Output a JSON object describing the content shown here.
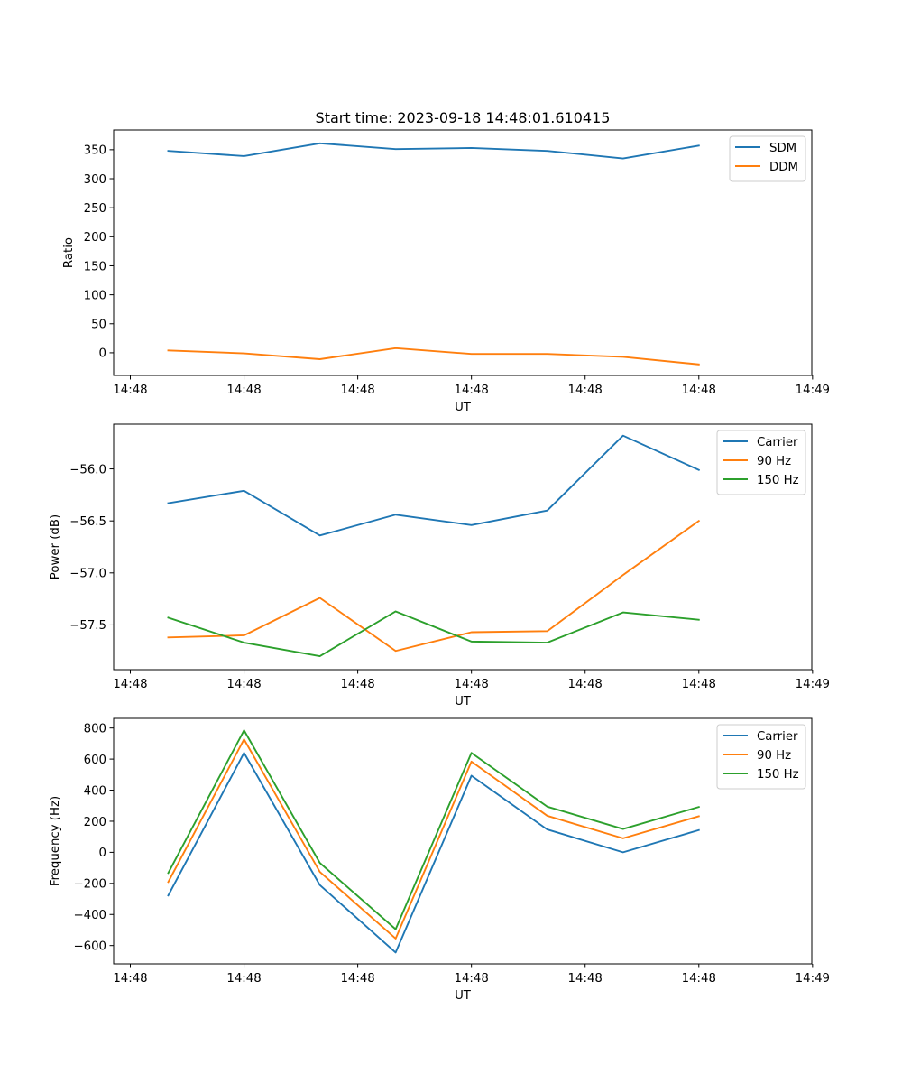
{
  "figure_title": "Start time: 2023-09-18 14:48:01.610415",
  "colors": {
    "blue": "#1f77b4",
    "orange": "#ff7f0e",
    "green": "#2ca02c"
  },
  "chart_data": [
    {
      "type": "line",
      "title": "Start time: 2023-09-18 14:48:01.610415",
      "xlabel": "UT",
      "ylabel": "Ratio",
      "x": [
        0,
        1,
        2,
        3,
        4,
        5,
        6,
        7
      ],
      "xlim": [
        -0.72,
        8.49
      ],
      "x_ticks": [
        -0.5,
        1.0,
        2.5,
        4.0,
        5.5,
        7.0,
        8.5
      ],
      "x_tick_labels": [
        "14:48",
        "14:48",
        "14:48",
        "14:48",
        "14:48",
        "14:48",
        "14:49"
      ],
      "ylim": [
        -39,
        384
      ],
      "y_ticks": [
        0,
        50,
        100,
        150,
        200,
        250,
        300,
        350
      ],
      "y_tick_labels": [
        "0",
        "50",
        "100",
        "150",
        "200",
        "250",
        "300",
        "350"
      ],
      "legend_position": "top-right",
      "series": [
        {
          "name": "SDM",
          "color": "#1f77b4",
          "values": [
            348,
            339,
            361,
            351,
            353,
            348,
            335,
            357
          ]
        },
        {
          "name": "DDM",
          "color": "#ff7f0e",
          "values": [
            4,
            -1,
            -11,
            8,
            -2,
            -2,
            -7,
            -20
          ]
        }
      ]
    },
    {
      "type": "line",
      "title": "",
      "xlabel": "UT",
      "ylabel": "Power (dB)",
      "x": [
        0,
        1,
        2,
        3,
        4,
        5,
        6,
        7
      ],
      "xlim": [
        -0.72,
        8.49
      ],
      "x_ticks": [
        -0.5,
        1.0,
        2.5,
        4.0,
        5.5,
        7.0,
        8.5
      ],
      "x_tick_labels": [
        "14:48",
        "14:48",
        "14:48",
        "14:48",
        "14:48",
        "14:48",
        "14:49"
      ],
      "ylim": [
        -57.93,
        -55.57
      ],
      "y_ticks": [
        -57.5,
        -57.0,
        -56.5,
        -56.0
      ],
      "y_tick_labels": [
        "−57.5",
        "−57.0",
        "−56.5",
        "−56.0"
      ],
      "legend_position": "top-right",
      "series": [
        {
          "name": "Carrier",
          "color": "#1f77b4",
          "values": [
            -56.33,
            -56.21,
            -56.64,
            -56.44,
            -56.54,
            -56.4,
            -55.68,
            -56.01
          ]
        },
        {
          "name": "90 Hz",
          "color": "#ff7f0e",
          "values": [
            -57.62,
            -57.6,
            -57.24,
            -57.75,
            -57.57,
            -57.56,
            -57.02,
            -56.5
          ]
        },
        {
          "name": "150 Hz",
          "color": "#2ca02c",
          "values": [
            -57.43,
            -57.67,
            -57.8,
            -57.37,
            -57.66,
            -57.67,
            -57.38,
            -57.45
          ]
        }
      ]
    },
    {
      "type": "line",
      "title": "",
      "xlabel": "UT",
      "ylabel": "Frequency (Hz)",
      "x": [
        0,
        1,
        2,
        3,
        4,
        5,
        6,
        7
      ],
      "xlim": [
        -0.72,
        8.49
      ],
      "x_ticks": [
        -0.5,
        1.0,
        2.5,
        4.0,
        5.5,
        7.0,
        8.5
      ],
      "x_tick_labels": [
        "14:48",
        "14:48",
        "14:48",
        "14:48",
        "14:48",
        "14:48",
        "14:49"
      ],
      "ylim": [
        -718,
        862
      ],
      "y_ticks": [
        -600,
        -400,
        -200,
        0,
        200,
        400,
        600,
        800
      ],
      "y_tick_labels": [
        "−600",
        "−400",
        "−200",
        "0",
        "200",
        "400",
        "600",
        "800"
      ],
      "legend_position": "top-right",
      "series": [
        {
          "name": "Carrier",
          "color": "#1f77b4",
          "values": [
            -278,
            640,
            -211,
            -645,
            493,
            147,
            0,
            143
          ]
        },
        {
          "name": "90 Hz",
          "color": "#ff7f0e",
          "values": [
            -191,
            727,
            -126,
            -555,
            584,
            235,
            90,
            232
          ]
        },
        {
          "name": "150 Hz",
          "color": "#2ca02c",
          "values": [
            -133,
            785,
            -68,
            -495,
            640,
            294,
            150,
            292
          ]
        }
      ]
    }
  ]
}
